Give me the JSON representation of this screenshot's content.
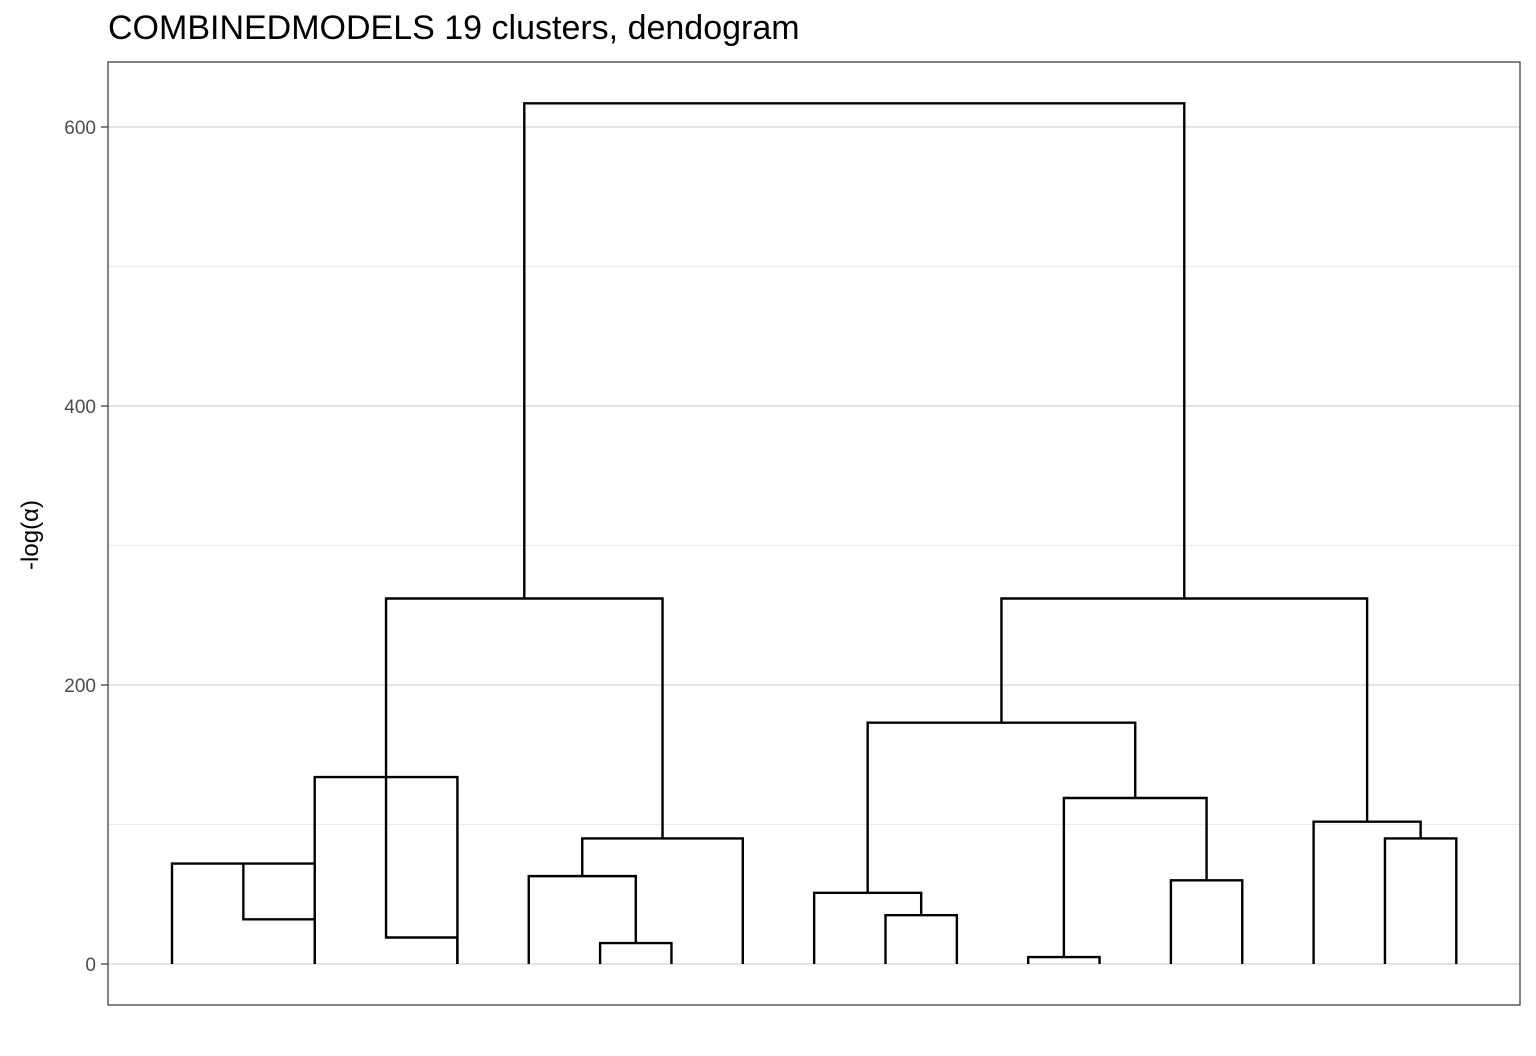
{
  "chart_data": {
    "type": "dendrogram",
    "title": "COMBINEDMODELS 19 clusters, dendogram",
    "xlabel": "",
    "ylabel": "-log(α)",
    "ylim": [
      -30,
      645
    ],
    "yticks": [
      0,
      200,
      400,
      600
    ],
    "ytick_labels": [
      "0",
      "200",
      "400",
      "600"
    ],
    "grid": true,
    "leaf_count": 19,
    "merges": [
      {
        "left": 1,
        "right": 2,
        "height": 32
      },
      {
        "left": 3,
        "right": 4,
        "height": 19
      },
      {
        "left": 0,
        "right": 2,
        "height": 72
      },
      {
        "left": 2,
        "right": 4,
        "height": 134
      },
      {
        "left": 6,
        "right": 7,
        "height": 15
      },
      {
        "left": 5,
        "right": 6.5,
        "height": 63
      },
      {
        "left": 5.75,
        "right": 8,
        "height": 90
      },
      {
        "left": 3,
        "right": 6.875,
        "height": 262
      },
      {
        "left": 10,
        "right": 11,
        "height": 35
      },
      {
        "left": 9,
        "right": 10.5,
        "height": 51
      },
      {
        "left": 12,
        "right": 13,
        "height": 5
      },
      {
        "left": 14,
        "right": 15,
        "height": 60
      },
      {
        "left": 12.5,
        "right": 14.5,
        "height": 119
      },
      {
        "left": 9.75,
        "right": 13.5,
        "height": 173
      },
      {
        "left": 17,
        "right": 18,
        "height": 90
      },
      {
        "left": 16,
        "right": 17.5,
        "height": 102
      },
      {
        "left": 11.625,
        "right": 16.75,
        "height": 262
      },
      {
        "left": 4.9375,
        "right": 14.1875,
        "height": 617
      }
    ]
  }
}
